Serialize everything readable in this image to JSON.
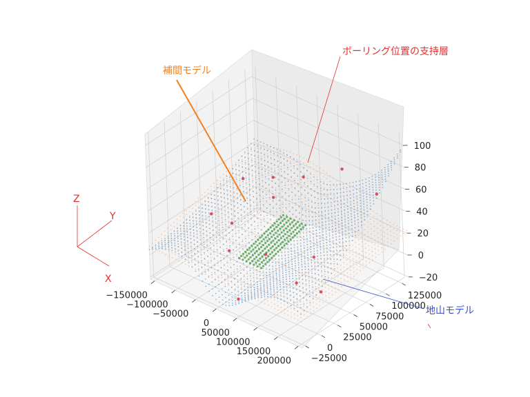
{
  "chart_data": {
    "type": "scatter",
    "projection": "3d",
    "grid": true,
    "annotations": [
      {
        "text": "ボーリング位置の支持層",
        "color": "#e03030"
      },
      {
        "text": "補間モデル",
        "color": "#f08020"
      },
      {
        "text": "地山モデル",
        "color": "#3a4fc8"
      }
    ],
    "axis_triad": {
      "z": "Z",
      "y": "Y",
      "x": "X",
      "color": "#e03030"
    },
    "x_ticks": [
      "−150000",
      "−100000",
      "−50000",
      "0",
      "50000",
      "100000",
      "150000",
      "200000"
    ],
    "y_ticks": [
      "−25000",
      "0",
      "25000",
      "50000",
      "75000",
      "100000",
      "125000"
    ],
    "z_ticks": [
      "−20",
      "0",
      "20",
      "40",
      "60",
      "80",
      "100"
    ],
    "xlim": [
      -160000,
      210000
    ],
    "ylim": [
      -30000,
      135000
    ],
    "zlim": [
      -22,
      110
    ],
    "series": [
      {
        "name": "地山モデル",
        "color": "#3b7fc4"
      },
      {
        "name": "補間モデル",
        "color": "#f5a060"
      },
      {
        "color": "#3a9a3a"
      },
      {
        "name": "ボーリング位置の支持層",
        "color": "#d05060"
      }
    ],
    "boreholes": [
      {
        "x": -150000,
        "y": 110000,
        "z": 18
      },
      {
        "x": -150000,
        "y": 60000,
        "z": 5
      },
      {
        "x": -100000,
        "y": 125000,
        "z": 22
      },
      {
        "x": -60000,
        "y": 100000,
        "z": 20
      },
      {
        "x": 0,
        "y": 110000,
        "z": 45
      },
      {
        "x": 80000,
        "y": 120000,
        "z": 62
      },
      {
        "x": 180000,
        "y": 110000,
        "z": 60
      },
      {
        "x": 30000,
        "y": 30000,
        "z": 10
      },
      {
        "x": 120000,
        "y": 20000,
        "z": 3
      },
      {
        "x": -60000,
        "y": 30000,
        "z": -2
      },
      {
        "x": -100000,
        "y": 60000,
        "z": 5
      },
      {
        "x": 40000,
        "y": -20000,
        "z": -10
      },
      {
        "x": 180000,
        "y": 20000,
        "z": 5
      },
      {
        "x": 100000,
        "y": 60000,
        "z": 8
      }
    ]
  }
}
